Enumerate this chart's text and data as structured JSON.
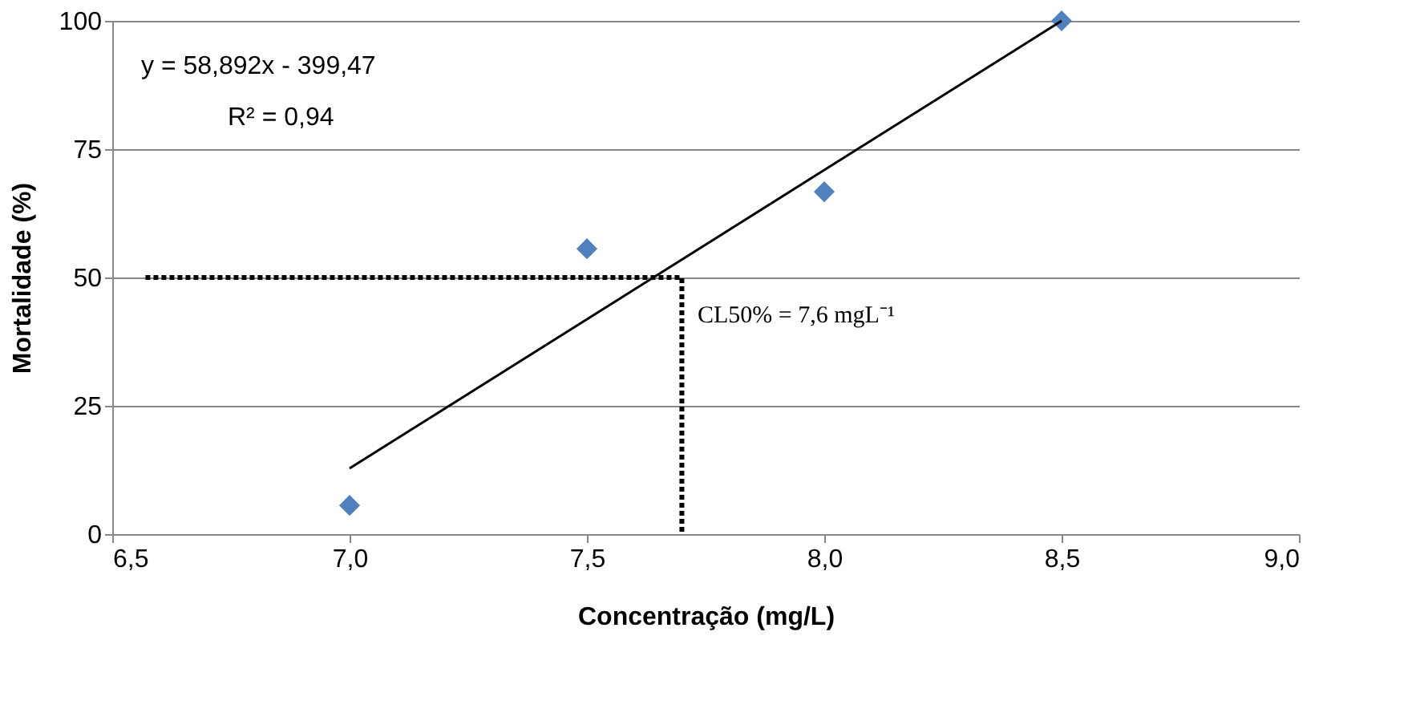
{
  "chart_data": {
    "type": "scatter",
    "xlabel": "Concentração (mg/L)",
    "ylabel": "Mortalidade (%)",
    "series": [
      {
        "color": "#4f81bd",
        "marker": "diamond",
        "x": [
          7.0,
          7.5,
          8.0,
          8.5
        ],
        "values": [
          5.6,
          55.6,
          66.7,
          100
        ]
      },
      {
        "type": "line",
        "color": "#000000",
        "line_style": "solid",
        "x": [
          7.0,
          8.5
        ],
        "values": [
          12.8,
          100
        ]
      },
      {
        "type": "line",
        "color": "#000000",
        "line_style": "dotted",
        "x": [
          6.57,
          7.7,
          7.7
        ],
        "values": [
          50,
          50,
          0
        ]
      }
    ],
    "xlim": [
      6.5,
      9.0
    ],
    "xticks": [
      {
        "value": 6.5,
        "label": "6,5"
      },
      {
        "value": 7.0,
        "label": "7,0"
      },
      {
        "value": 7.5,
        "label": "7,5"
      },
      {
        "value": 8.0,
        "label": "8,0"
      },
      {
        "value": 8.5,
        "label": "8,5"
      },
      {
        "value": 9.0,
        "label": "9,0"
      }
    ],
    "ylim": [
      0,
      100
    ],
    "yticks": [
      0,
      25,
      50,
      75,
      100
    ],
    "grid": "y",
    "annotations": [
      "y = 58,892x - 399,47",
      "R² = 0,94",
      "CL50% = 7,6 mgL⁻¹"
    ]
  }
}
